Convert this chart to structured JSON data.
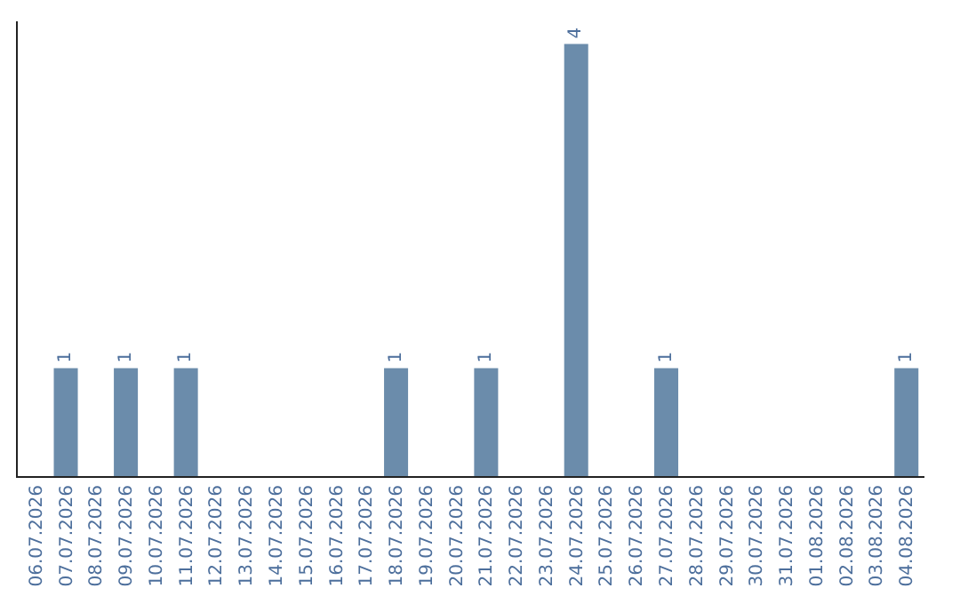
{
  "chart_data": {
    "type": "bar",
    "categories": [
      "06.07.2026",
      "07.07.2026",
      "08.07.2026",
      "09.07.2026",
      "10.07.2026",
      "11.07.2026",
      "12.07.2026",
      "13.07.2026",
      "14.07.2026",
      "15.07.2026",
      "16.07.2026",
      "17.07.2026",
      "18.07.2026",
      "19.07.2026",
      "20.07.2026",
      "21.07.2026",
      "22.07.2026",
      "23.07.2026",
      "24.07.2026",
      "25.07.2026",
      "26.07.2026",
      "27.07.2026",
      "28.07.2026",
      "29.07.2026",
      "30.07.2026",
      "31.07.2026",
      "01.08.2026",
      "02.08.2026",
      "03.08.2026",
      "04.08.2026"
    ],
    "values": [
      0,
      1,
      0,
      1,
      0,
      1,
      0,
      0,
      0,
      0,
      0,
      0,
      1,
      0,
      0,
      1,
      0,
      0,
      4,
      0,
      0,
      1,
      0,
      0,
      0,
      0,
      0,
      0,
      0,
      1
    ],
    "value_labels": [
      null,
      "1",
      null,
      "1",
      null,
      "1",
      null,
      null,
      null,
      null,
      null,
      null,
      "1",
      null,
      null,
      "1",
      null,
      null,
      "4",
      null,
      null,
      "1",
      null,
      null,
      null,
      null,
      null,
      null,
      null,
      "1"
    ],
    "color": "#6b8cab",
    "tick_labels": "x"
  }
}
